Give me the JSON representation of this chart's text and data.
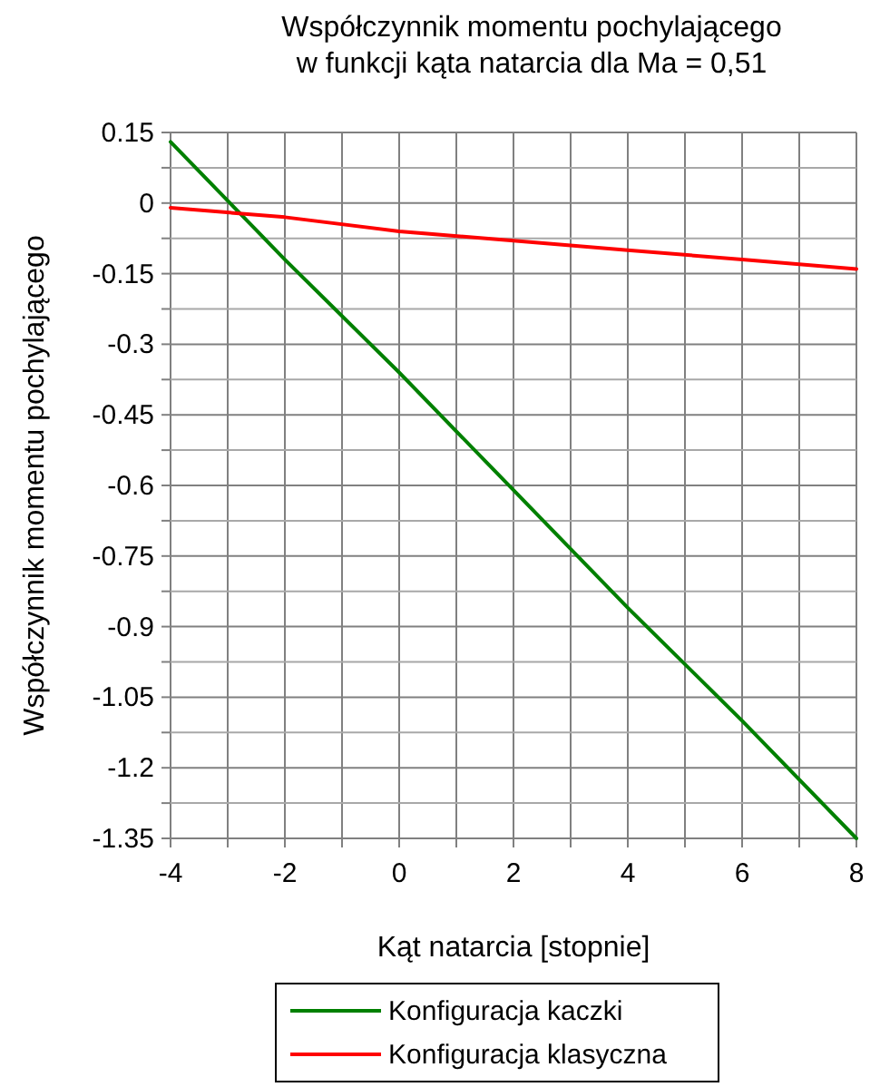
{
  "chart_data": {
    "type": "line",
    "title": "Współczynnik momentu pochylającego\nw funkcji kąta natarcia dla Ma = 0,51",
    "xlabel": "Kąt natarcia [stopnie]",
    "ylabel": "Współczynnik momentu pochylającego",
    "x": [
      -4,
      -2,
      0,
      2,
      4,
      6,
      8
    ],
    "series": [
      {
        "name": "Konfiguracja kaczki",
        "color": "#008000",
        "values": [
          0.13,
          -0.12,
          -0.36,
          -0.61,
          -0.86,
          -1.1,
          -1.35
        ]
      },
      {
        "name": "Konfiguracja klasyczna",
        "color": "#ff0000",
        "values": [
          -0.01,
          -0.03,
          -0.06,
          -0.08,
          -0.1,
          -0.12,
          -0.14
        ]
      }
    ],
    "xlim": [
      -4,
      8
    ],
    "xticks": [
      -4,
      {
        "value": -3,
        "label": null
      },
      -2,
      {
        "value": -1,
        "label": null
      },
      0,
      {
        "value": 1,
        "label": null
      },
      2,
      {
        "value": 3,
        "label": null
      },
      4,
      {
        "value": 5,
        "label": null
      },
      6,
      {
        "value": 7,
        "label": null
      },
      8
    ],
    "ylim": [
      -1.35,
      0.15
    ],
    "yticks": [
      0.15,
      {
        "value": 0.075,
        "label": null
      },
      {
        "value": 0,
        "label": "0"
      },
      {
        "value": -0.075,
        "label": null
      },
      -0.15,
      {
        "value": -0.225,
        "label": null
      },
      -0.3,
      {
        "value": -0.375,
        "label": null
      },
      -0.45,
      {
        "value": -0.525,
        "label": null
      },
      -0.6,
      {
        "value": -0.675,
        "label": null
      },
      -0.75,
      {
        "value": -0.825,
        "label": null
      },
      -0.9,
      {
        "value": -0.975,
        "label": null
      },
      -1.05,
      {
        "value": -1.125,
        "label": null
      },
      -1.2,
      {
        "value": -1.275,
        "label": null
      },
      -1.35
    ],
    "grid": true,
    "legend": "bottom",
    "marker": "none",
    "line_style": "solid"
  }
}
